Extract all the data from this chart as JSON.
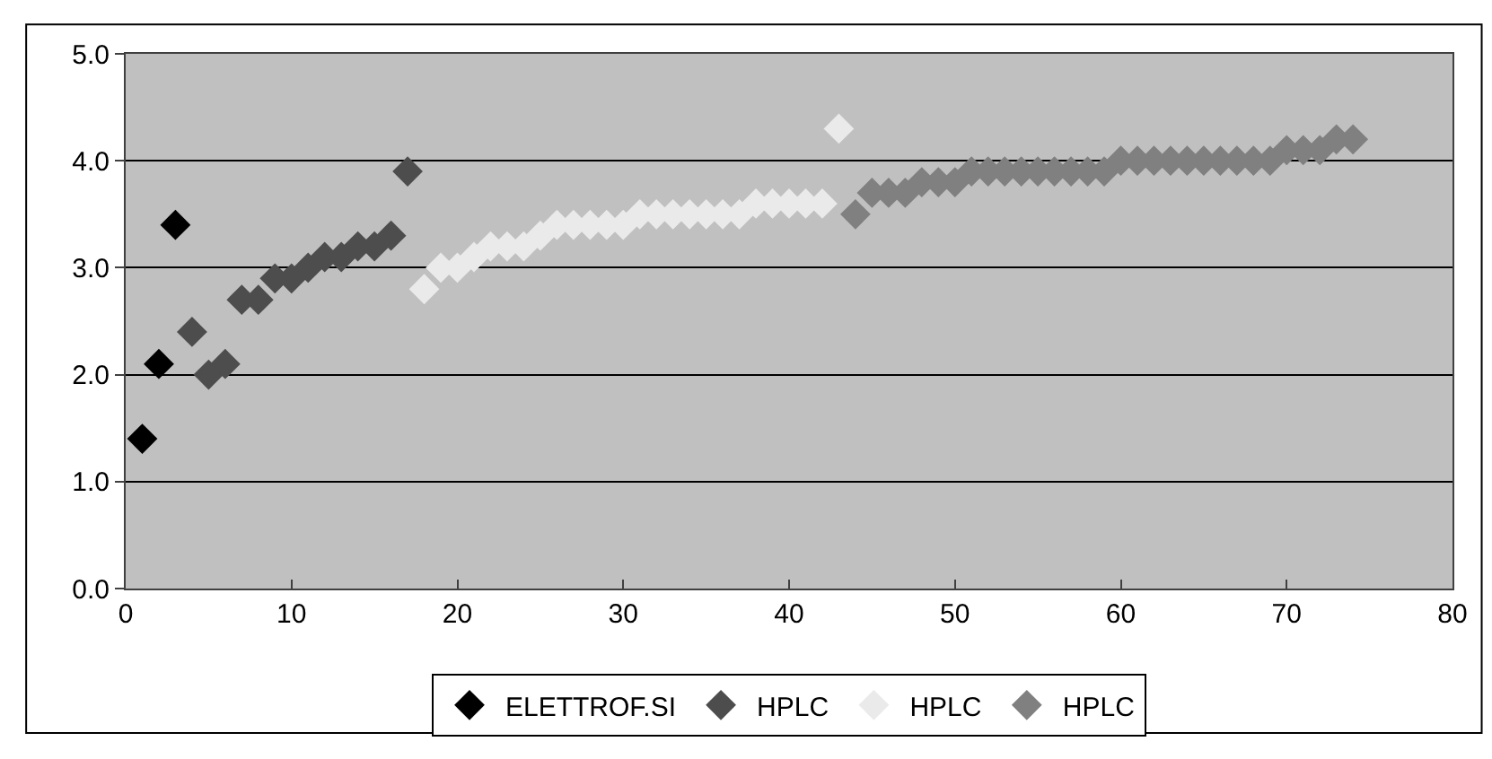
{
  "chart_data": {
    "type": "scatter",
    "marker": "diamond",
    "grid": "y",
    "legend": "bottom",
    "xlim": [
      0,
      80
    ],
    "xticks": [
      0,
      10,
      20,
      30,
      40,
      50,
      60,
      70,
      80
    ],
    "ylim": [
      0,
      5
    ],
    "yticks": [
      {
        "value": 0,
        "label": "0.0"
      },
      {
        "value": 1,
        "label": "1.0"
      },
      {
        "value": 2,
        "label": "2.0"
      },
      {
        "value": 3,
        "label": "3.0"
      },
      {
        "value": 4,
        "label": "4.0"
      },
      {
        "value": 5,
        "label": "5.0"
      }
    ],
    "series": [
      {
        "name": "ELETTROF.SI",
        "color": "#000000",
        "x": [
          1,
          2,
          3
        ],
        "values": [
          1.4,
          2.1,
          3.4
        ]
      },
      {
        "name": "HPLC",
        "color": "#4d4d4d",
        "x": [
          4,
          5,
          6,
          7,
          8,
          9,
          10,
          11,
          12,
          13,
          14,
          15,
          16,
          17
        ],
        "values": [
          2.4,
          2.0,
          2.1,
          2.7,
          2.7,
          2.9,
          2.9,
          3.0,
          3.1,
          3.1,
          3.2,
          3.2,
          3.3,
          3.9
        ]
      },
      {
        "name": "HPLC",
        "color": "#eaeaea",
        "x": [
          18,
          19,
          20,
          21,
          22,
          23,
          24,
          25,
          26,
          27,
          28,
          29,
          30,
          31,
          32,
          33,
          34,
          35,
          36,
          37,
          38,
          39,
          40,
          41,
          42,
          43
        ],
        "values": [
          2.8,
          3.0,
          3.0,
          3.1,
          3.2,
          3.2,
          3.2,
          3.3,
          3.4,
          3.4,
          3.4,
          3.4,
          3.4,
          3.5,
          3.5,
          3.5,
          3.5,
          3.5,
          3.5,
          3.5,
          3.6,
          3.6,
          3.6,
          3.6,
          3.6,
          4.3
        ]
      },
      {
        "name": "HPLC",
        "color": "#808080",
        "x": [
          44,
          45,
          46,
          47,
          48,
          49,
          50,
          51,
          52,
          53,
          54,
          55,
          56,
          57,
          58,
          59,
          60,
          61,
          62,
          63,
          64,
          65,
          66,
          67,
          68,
          69,
          70,
          71,
          72,
          73,
          74
        ],
        "values": [
          3.5,
          3.7,
          3.7,
          3.7,
          3.8,
          3.8,
          3.8,
          3.9,
          3.9,
          3.9,
          3.9,
          3.9,
          3.9,
          3.9,
          3.9,
          3.9,
          4.0,
          4.0,
          4.0,
          4.0,
          4.0,
          4.0,
          4.0,
          4.0,
          4.0,
          4.0,
          4.1,
          4.1,
          4.1,
          4.2,
          4.2
        ]
      }
    ]
  }
}
